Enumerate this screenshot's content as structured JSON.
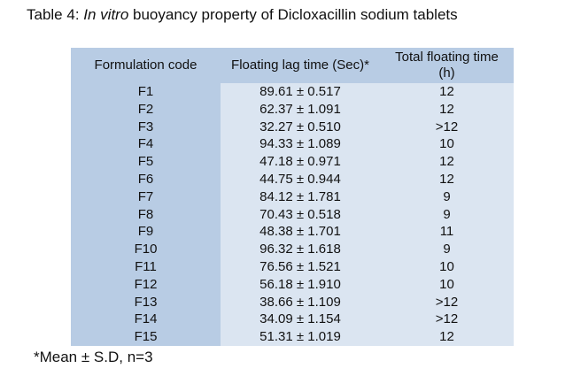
{
  "title": {
    "prefix": "Table 4: ",
    "italic": "In vitro",
    "suffix": " buoyancy property of Dicloxacillin sodium tablets"
  },
  "headers": [
    "Formulation code",
    "Floating lag time (Sec)*",
    "Total floating time (h)"
  ],
  "rows": [
    [
      "F1",
      "89.61 ± 0.517",
      "12"
    ],
    [
      "F2",
      "62.37 ± 1.091",
      "12"
    ],
    [
      "F3",
      "32.27 ± 0.510",
      ">12"
    ],
    [
      "F4",
      "94.33 ± 1.089",
      "10"
    ],
    [
      "F5",
      "47.18 ± 0.971",
      "12"
    ],
    [
      "F6",
      "44.75 ± 0.944",
      "12"
    ],
    [
      "F7",
      "84.12 ± 1.781",
      "9"
    ],
    [
      "F8",
      "70.43 ± 0.518",
      "9"
    ],
    [
      "F9",
      "48.38 ± 1.701",
      "11"
    ],
    [
      "F10",
      "96.32 ± 1.618",
      "9"
    ],
    [
      "F11",
      "76.56 ± 1.521",
      "10"
    ],
    [
      "F12",
      "56.18 ± 1.910",
      "10"
    ],
    [
      "F13",
      "38.66 ± 1.109",
      ">12"
    ],
    [
      "F14",
      "34.09 ± 1.154",
      ">12"
    ],
    [
      "F15",
      "51.31 ± 1.019",
      "12"
    ]
  ],
  "footnote": "*Mean ± S.D, n=3"
}
